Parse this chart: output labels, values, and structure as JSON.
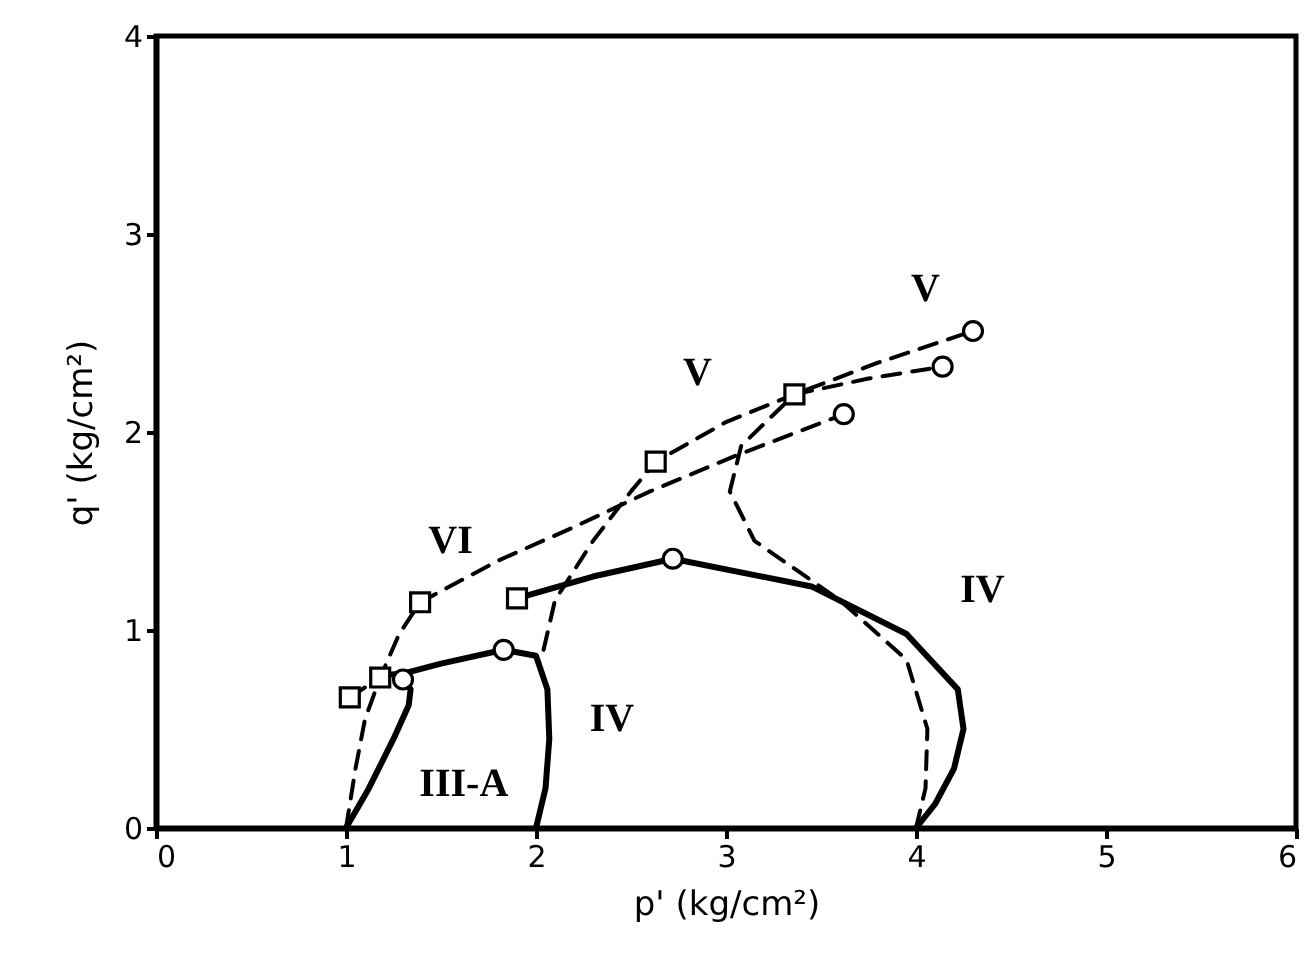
{
  "chart_data": {
    "type": "line",
    "xlabel": "p' (kg/cm²)",
    "ylabel": "q' (kg/cm²)",
    "xlim": [
      0,
      6
    ],
    "ylim": [
      0,
      4
    ],
    "xticks": [
      0,
      1,
      2,
      3,
      4,
      5,
      6
    ],
    "yticks": [
      0,
      1,
      2,
      3,
      4
    ],
    "grid": false,
    "series": [
      {
        "color": "#000000",
        "line_style": "solid",
        "marker": "none",
        "x": [
          1.0,
          1.12,
          1.25,
          1.33,
          1.34,
          1.3
        ],
        "values": [
          0,
          0.2,
          0.45,
          0.62,
          0.7,
          0.75
        ]
      },
      {
        "color": "#000000",
        "line_style": "solid",
        "marker": "none",
        "x": [
          1.18,
          1.3,
          1.5,
          1.83,
          2.0,
          2.06,
          2.07,
          2.05,
          2.0
        ],
        "values": [
          0.77,
          0.78,
          0.83,
          0.9,
          0.87,
          0.7,
          0.45,
          0.2,
          0
        ]
      },
      {
        "color": "#000000",
        "line_style": "solid",
        "marker": "none",
        "x": [
          1.9,
          2.3,
          2.72,
          3.45,
          3.95,
          4.22,
          4.25,
          4.2,
          4.1,
          4.0
        ],
        "values": [
          1.16,
          1.27,
          1.36,
          1.22,
          0.98,
          0.7,
          0.5,
          0.3,
          0.12,
          0
        ]
      },
      {
        "color": "#000000",
        "line_style": "dashed",
        "marker": "none",
        "x": [
          4.0,
          4.05,
          4.06,
          3.95,
          3.6,
          3.15,
          3.02,
          3.08,
          3.36
        ],
        "values": [
          0,
          0.2,
          0.5,
          0.85,
          1.15,
          1.45,
          1.7,
          1.93,
          2.19
        ]
      },
      {
        "color": "#000000",
        "line_style": "dashed",
        "marker": "none",
        "x": [
          3.36,
          3.75,
          4.14
        ],
        "values": [
          2.19,
          2.27,
          2.33
        ]
      },
      {
        "color": "#000000",
        "line_style": "dashed",
        "marker": "none",
        "x": [
          2.04,
          2.1,
          2.3,
          2.5,
          2.63,
          3.0,
          3.36,
          3.8,
          4.3
        ],
        "values": [
          0.9,
          1.15,
          1.45,
          1.7,
          1.85,
          2.05,
          2.19,
          2.35,
          2.51
        ]
      },
      {
        "color": "#000000",
        "line_style": "dashed",
        "marker": "none",
        "x": [
          1.0,
          1.05,
          1.1,
          1.18,
          1.28,
          1.39,
          1.8,
          2.2,
          2.6,
          3.05,
          3.62
        ],
        "values": [
          0,
          0.3,
          0.55,
          0.76,
          0.98,
          1.14,
          1.35,
          1.52,
          1.7,
          1.88,
          2.09
        ]
      },
      {
        "color": "#000000",
        "line_style": "dashed",
        "marker": "none",
        "x": [
          1.02,
          1.18
        ],
        "values": [
          0.66,
          0.76
        ]
      },
      {
        "type": "scatter",
        "color": "#000000",
        "marker": "square",
        "x": [
          1.02,
          1.18,
          1.39,
          1.9,
          2.63,
          3.36
        ],
        "values": [
          0.66,
          0.76,
          1.14,
          1.16,
          1.85,
          2.19
        ]
      },
      {
        "type": "scatter",
        "color": "#000000",
        "marker": "circle",
        "x": [
          1.3,
          1.83,
          2.72,
          3.62,
          4.14,
          4.3
        ],
        "values": [
          0.75,
          0.9,
          1.36,
          2.09,
          2.33,
          2.51
        ]
      }
    ],
    "annotations": [
      "VI",
      "V",
      "V",
      "IV",
      "IV",
      "III-A"
    ]
  }
}
